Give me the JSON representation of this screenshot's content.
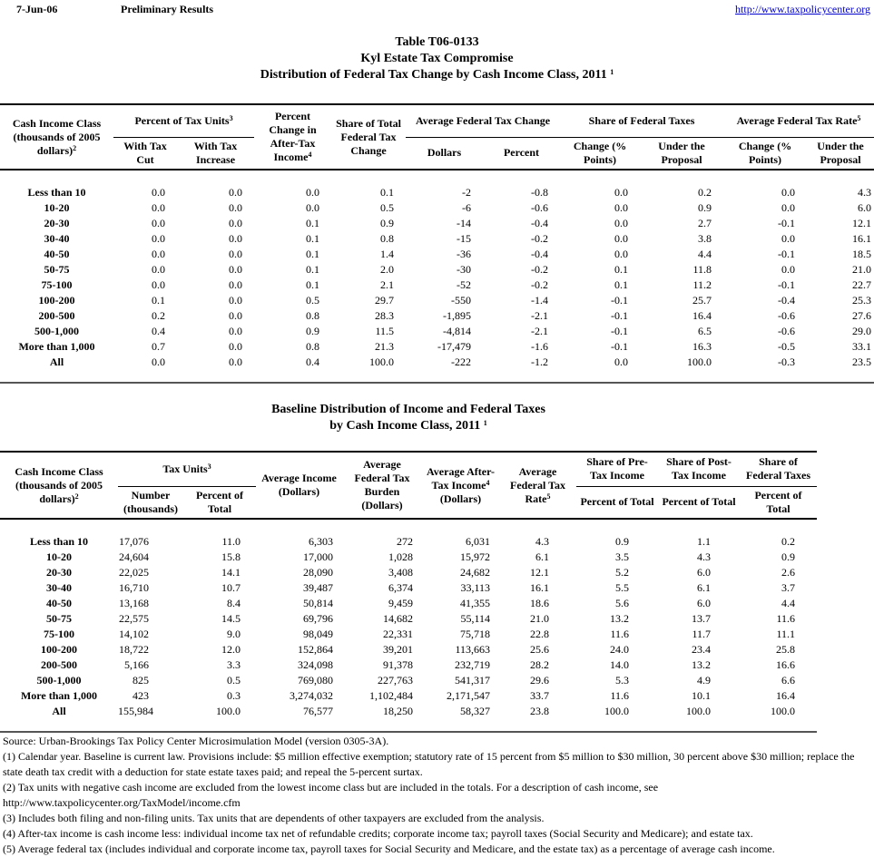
{
  "header": {
    "date": "7-Jun-06",
    "status": "Preliminary Results",
    "url": "http://www.taxpolicycenter.org"
  },
  "table1": {
    "title": [
      "Table T06-0133",
      "Kyl Estate Tax Compromise",
      "Distribution of Federal Tax Change by Cash Income Class, 2011"
    ],
    "title_sup": "1",
    "header": {
      "class": {
        "text": "Cash Income Class (thousands of 2005 dollars)",
        "sup": "2"
      },
      "units": {
        "text": "Percent of Tax Units",
        "sup": "3",
        "cols": [
          "With Tax Cut",
          "With Tax Increase"
        ]
      },
      "after_tax": {
        "text": "Percent Change in After-Tax Income",
        "sup": "4"
      },
      "share_change": {
        "text": "Share of Total Federal Tax Change"
      },
      "avg_change": {
        "text": "Average Federal Tax Change",
        "cols": [
          "Dollars",
          "Percent"
        ]
      },
      "share_taxes": {
        "text": "Share of Federal Taxes",
        "cols": [
          "Change (% Points)",
          "Under the Proposal"
        ]
      },
      "rate": {
        "text": "Average Federal Tax Rate",
        "sup": "5",
        "cols": [
          "Change (% Points)",
          "Under the Proposal"
        ]
      }
    },
    "rows": [
      {
        "label": "Less than 10",
        "cells": [
          "0.0",
          "0.0",
          "0.0",
          "0.1",
          "-2",
          "-0.8",
          "0.0",
          "0.2",
          "0.0",
          "4.3"
        ]
      },
      {
        "label": "10-20",
        "cells": [
          "0.0",
          "0.0",
          "0.0",
          "0.5",
          "-6",
          "-0.6",
          "0.0",
          "0.9",
          "0.0",
          "6.0"
        ]
      },
      {
        "label": "20-30",
        "cells": [
          "0.0",
          "0.0",
          "0.1",
          "0.9",
          "-14",
          "-0.4",
          "0.0",
          "2.7",
          "-0.1",
          "12.1"
        ]
      },
      {
        "label": "30-40",
        "cells": [
          "0.0",
          "0.0",
          "0.1",
          "0.8",
          "-15",
          "-0.2",
          "0.0",
          "3.8",
          "0.0",
          "16.1"
        ]
      },
      {
        "label": "40-50",
        "cells": [
          "0.0",
          "0.0",
          "0.1",
          "1.4",
          "-36",
          "-0.4",
          "0.0",
          "4.4",
          "-0.1",
          "18.5"
        ]
      },
      {
        "label": "50-75",
        "cells": [
          "0.0",
          "0.0",
          "0.1",
          "2.0",
          "-30",
          "-0.2",
          "0.1",
          "11.8",
          "0.0",
          "21.0"
        ]
      },
      {
        "label": "75-100",
        "cells": [
          "0.0",
          "0.0",
          "0.1",
          "2.1",
          "-52",
          "-0.2",
          "0.1",
          "11.2",
          "-0.1",
          "22.7"
        ]
      },
      {
        "label": "100-200",
        "cells": [
          "0.1",
          "0.0",
          "0.5",
          "29.7",
          "-550",
          "-1.4",
          "-0.1",
          "25.7",
          "-0.4",
          "25.3"
        ]
      },
      {
        "label": "200-500",
        "cells": [
          "0.2",
          "0.0",
          "0.8",
          "28.3",
          "-1,895",
          "-2.1",
          "-0.1",
          "16.4",
          "-0.6",
          "27.6"
        ]
      },
      {
        "label": "500-1,000",
        "cells": [
          "0.4",
          "0.0",
          "0.9",
          "11.5",
          "-4,814",
          "-2.1",
          "-0.1",
          "6.5",
          "-0.6",
          "29.0"
        ]
      },
      {
        "label": "More than 1,000",
        "cells": [
          "0.7",
          "0.0",
          "0.8",
          "21.3",
          "-17,479",
          "-1.6",
          "-0.1",
          "16.3",
          "-0.5",
          "33.1"
        ]
      },
      {
        "label": "All",
        "cells": [
          "0.0",
          "0.0",
          "0.4",
          "100.0",
          "-222",
          "-1.2",
          "0.0",
          "100.0",
          "-0.3",
          "23.5"
        ]
      }
    ]
  },
  "table2": {
    "title": [
      "Baseline Distribution of Income and Federal Taxes",
      "by Cash Income Class, 2011"
    ],
    "title_sup": "1",
    "header": {
      "class": {
        "text": "Cash Income Class (thousands of 2005 dollars)",
        "sup": "2"
      },
      "units": {
        "text": "Tax Units",
        "sup": "3",
        "cols": [
          "Number (thousands)",
          "Percent of Total"
        ]
      },
      "income": {
        "text": "Average Income (Dollars)"
      },
      "burden": {
        "text": "Average Federal Tax Burden (Dollars)"
      },
      "after_tax": {
        "text": "Average After-Tax Income",
        "sup": "4",
        "unit": "(Dollars)"
      },
      "rate": {
        "text": "Average Federal Tax Rate",
        "sup": "5"
      },
      "pre": {
        "text": "Share of Pre-Tax Income",
        "cols": [
          "Percent of Total"
        ]
      },
      "post": {
        "text": "Share of Post-Tax Income",
        "cols": [
          "Percent of Total"
        ]
      },
      "fed": {
        "text": "Share of Federal Taxes",
        "cols": [
          "Percent of Total"
        ]
      }
    },
    "rows": [
      {
        "label": "Less than 10",
        "cells": [
          "17,076",
          "11.0",
          "6,303",
          "272",
          "6,031",
          "4.3",
          "0.9",
          "1.1",
          "0.2"
        ]
      },
      {
        "label": "10-20",
        "cells": [
          "24,604",
          "15.8",
          "17,000",
          "1,028",
          "15,972",
          "6.1",
          "3.5",
          "4.3",
          "0.9"
        ]
      },
      {
        "label": "20-30",
        "cells": [
          "22,025",
          "14.1",
          "28,090",
          "3,408",
          "24,682",
          "12.1",
          "5.2",
          "6.0",
          "2.6"
        ]
      },
      {
        "label": "30-40",
        "cells": [
          "16,710",
          "10.7",
          "39,487",
          "6,374",
          "33,113",
          "16.1",
          "5.5",
          "6.1",
          "3.7"
        ]
      },
      {
        "label": "40-50",
        "cells": [
          "13,168",
          "8.4",
          "50,814",
          "9,459",
          "41,355",
          "18.6",
          "5.6",
          "6.0",
          "4.4"
        ]
      },
      {
        "label": "50-75",
        "cells": [
          "22,575",
          "14.5",
          "69,796",
          "14,682",
          "55,114",
          "21.0",
          "13.2",
          "13.7",
          "11.6"
        ]
      },
      {
        "label": "75-100",
        "cells": [
          "14,102",
          "9.0",
          "98,049",
          "22,331",
          "75,718",
          "22.8",
          "11.6",
          "11.7",
          "11.1"
        ]
      },
      {
        "label": "100-200",
        "cells": [
          "18,722",
          "12.0",
          "152,864",
          "39,201",
          "113,663",
          "25.6",
          "24.0",
          "23.4",
          "25.8"
        ]
      },
      {
        "label": "200-500",
        "cells": [
          "5,166",
          "3.3",
          "324,098",
          "91,378",
          "232,719",
          "28.2",
          "14.0",
          "13.2",
          "16.6"
        ]
      },
      {
        "label": "500-1,000",
        "cells": [
          "825",
          "0.5",
          "769,080",
          "227,763",
          "541,317",
          "29.6",
          "5.3",
          "4.9",
          "6.6"
        ]
      },
      {
        "label": "More than 1,000",
        "cells": [
          "423",
          "0.3",
          "3,274,032",
          "1,102,484",
          "2,171,547",
          "33.7",
          "11.6",
          "10.1",
          "16.4"
        ]
      },
      {
        "label": "All",
        "cells": [
          "155,984",
          "100.0",
          "76,577",
          "18,250",
          "58,327",
          "23.8",
          "100.0",
          "100.0",
          "100.0"
        ]
      }
    ]
  },
  "notes": [
    "Source: Urban-Brookings Tax Policy Center Microsimulation Model (version 0305-3A).",
    "(1) Calendar year. Baseline is current law.  Provisions include: $5 million effective exemption; statutory rate of 15 percent from $5 million to $30 million, 30 percent above $30 million; replace the state death tax credit with a deduction for state estate taxes paid; and repeal the 5-percent surtax.",
    "(2) Tax units with negative cash income are excluded from the lowest income class but are included in the totals. For a description of cash income, see http://www.taxpolicycenter.org/TaxModel/income.cfm",
    "(3) Includes both filing and non-filing units.  Tax units that are dependents of other taxpayers are excluded from the analysis.",
    "(4) After-tax income is cash income less: individual income tax net of refundable credits; corporate income tax; payroll taxes (Social Security and Medicare); and estate tax.",
    "(5) Average federal tax (includes individual and corporate income tax, payroll taxes for Social Security and Medicare, and the estate tax) as a percentage of average cash income."
  ]
}
